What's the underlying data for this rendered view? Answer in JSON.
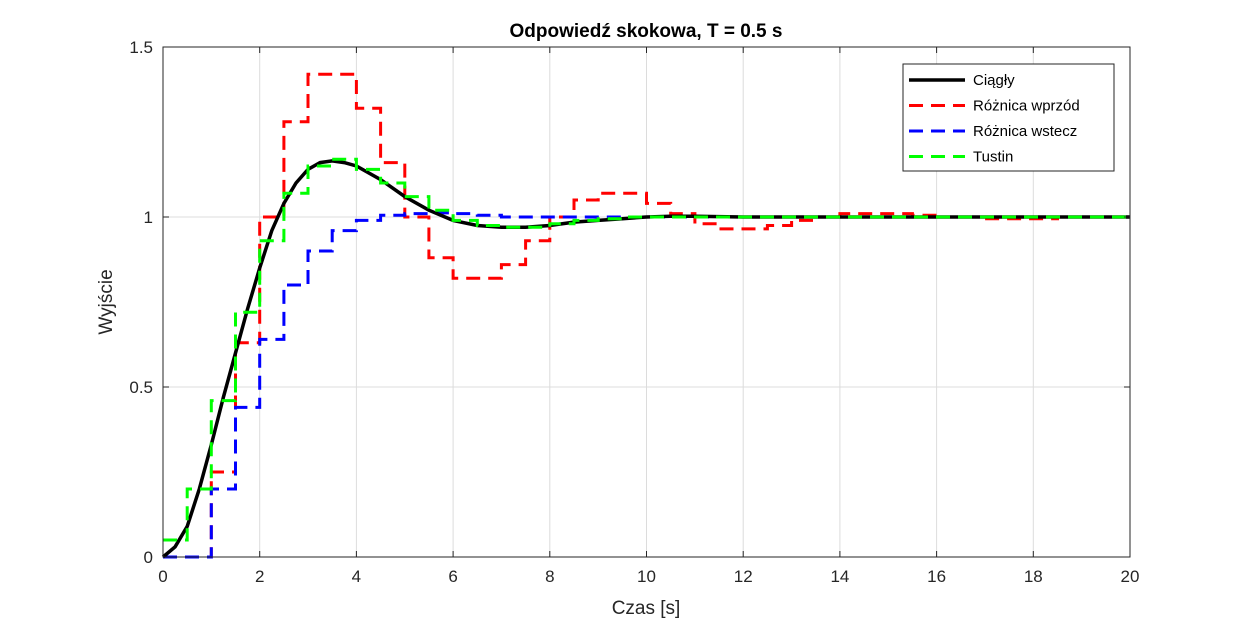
{
  "chart_data": {
    "type": "line",
    "title": "Odpowiedź skokowa, T = 0.5 s",
    "xlabel": "Czas [s]",
    "ylabel": "Wyjście",
    "xlim": [
      0,
      20
    ],
    "ylim": [
      0,
      1.5
    ],
    "xticks": [
      0,
      2,
      4,
      6,
      8,
      10,
      12,
      14,
      16,
      18,
      20
    ],
    "yticks": [
      0,
      0.5,
      1,
      1.5
    ],
    "xtick_labels": [
      "0",
      "2",
      "4",
      "6",
      "8",
      "10",
      "12",
      "14",
      "16",
      "18",
      "20"
    ],
    "ytick_labels": [
      "0",
      "0.5",
      "1",
      "1.5"
    ],
    "grid": true,
    "legend_position": "top-right",
    "series": [
      {
        "name": "Ciągły",
        "style": "solid",
        "color": "#000000",
        "x": [
          0,
          0.25,
          0.5,
          0.75,
          1,
          1.25,
          1.5,
          1.75,
          2,
          2.25,
          2.5,
          2.75,
          3,
          3.25,
          3.5,
          3.75,
          4,
          4.5,
          5,
          5.5,
          6,
          6.5,
          7,
          7.5,
          8,
          8.5,
          9,
          9.5,
          10,
          10.5,
          11,
          12,
          13,
          14,
          15,
          16,
          17,
          18,
          19,
          20
        ],
        "y": [
          0,
          0.03,
          0.09,
          0.2,
          0.33,
          0.47,
          0.6,
          0.73,
          0.85,
          0.96,
          1.04,
          1.1,
          1.14,
          1.16,
          1.165,
          1.16,
          1.15,
          1.11,
          1.06,
          1.02,
          0.99,
          0.975,
          0.97,
          0.97,
          0.975,
          0.985,
          0.99,
          0.995,
          1.0,
          1.002,
          1.002,
          1.0,
          1.0,
          1.0,
          1.0,
          1.0,
          1.0,
          1.0,
          1.0,
          1.0
        ]
      },
      {
        "name": "Różnica wprzód",
        "style": "dashed-stairs",
        "color": "#ff0000",
        "step": 0.5,
        "x": [
          0,
          0.5,
          1,
          1.5,
          2,
          2.5,
          3,
          3.5,
          4,
          4.5,
          5,
          5.5,
          6,
          6.5,
          7,
          7.5,
          8,
          8.5,
          9,
          9.5,
          10,
          10.5,
          11,
          11.5,
          12,
          12.5,
          13,
          13.5,
          14,
          14.5,
          15,
          15.5,
          16,
          16.5,
          17,
          17.5,
          18,
          18.5,
          19,
          19.5
        ],
        "y": [
          0,
          0,
          0.25,
          0.63,
          1.0,
          1.28,
          1.42,
          1.42,
          1.32,
          1.16,
          1.0,
          0.88,
          0.82,
          0.82,
          0.86,
          0.93,
          1.0,
          1.05,
          1.07,
          1.07,
          1.04,
          1.01,
          0.98,
          0.965,
          0.965,
          0.975,
          0.99,
          1.0,
          1.01,
          1.01,
          1.01,
          1.005,
          1.0,
          1.0,
          0.995,
          0.995,
          0.995,
          1.0,
          1.0,
          1.0
        ]
      },
      {
        "name": "Różnica wstecz",
        "style": "dashed-stairs",
        "color": "#0000ff",
        "step": 0.5,
        "x": [
          0,
          0.5,
          1,
          1.5,
          2,
          2.5,
          3,
          3.5,
          4,
          4.5,
          5,
          5.5,
          6,
          6.5,
          7,
          7.5,
          8,
          8.5,
          9,
          9.5,
          10,
          10.5,
          11,
          11.5,
          12,
          12.5,
          13,
          13.5,
          14,
          14.5,
          15,
          15.5,
          16,
          16.5,
          17,
          17.5,
          18,
          18.5,
          19,
          19.5
        ],
        "y": [
          0,
          0,
          0.2,
          0.44,
          0.64,
          0.8,
          0.9,
          0.96,
          0.99,
          1.005,
          1.01,
          1.012,
          1.01,
          1.005,
          1.0,
          1.0,
          1.0,
          1.0,
          1.0,
          1.0,
          1.0,
          1.0,
          1.0,
          1.0,
          1.0,
          1.0,
          1.0,
          1.0,
          1.0,
          1.0,
          1.0,
          1.0,
          1.0,
          1.0,
          1.0,
          1.0,
          1.0,
          1.0,
          1.0,
          1.0
        ]
      },
      {
        "name": "Tustin",
        "style": "dashed-stairs",
        "color": "#00ff00",
        "step": 0.5,
        "x": [
          0,
          0.5,
          1,
          1.5,
          2,
          2.5,
          3,
          3.5,
          4,
          4.5,
          5,
          5.5,
          6,
          6.5,
          7,
          7.5,
          8,
          8.5,
          9,
          9.5,
          10,
          10.5,
          11,
          11.5,
          12,
          12.5,
          13,
          13.5,
          14,
          14.5,
          15,
          15.5,
          16,
          16.5,
          17,
          17.5,
          18,
          18.5,
          19,
          19.5
        ],
        "y": [
          0.05,
          0.2,
          0.46,
          0.72,
          0.93,
          1.07,
          1.15,
          1.17,
          1.14,
          1.1,
          1.06,
          1.02,
          0.99,
          0.975,
          0.97,
          0.97,
          0.98,
          0.99,
          0.995,
          1.0,
          1.0,
          1.0,
          1.0,
          1.0,
          1.0,
          1.0,
          1.0,
          1.0,
          1.0,
          1.0,
          1.0,
          1.0,
          1.0,
          1.0,
          1.0,
          1.0,
          1.0,
          1.0,
          1.0,
          1.0
        ]
      }
    ]
  }
}
